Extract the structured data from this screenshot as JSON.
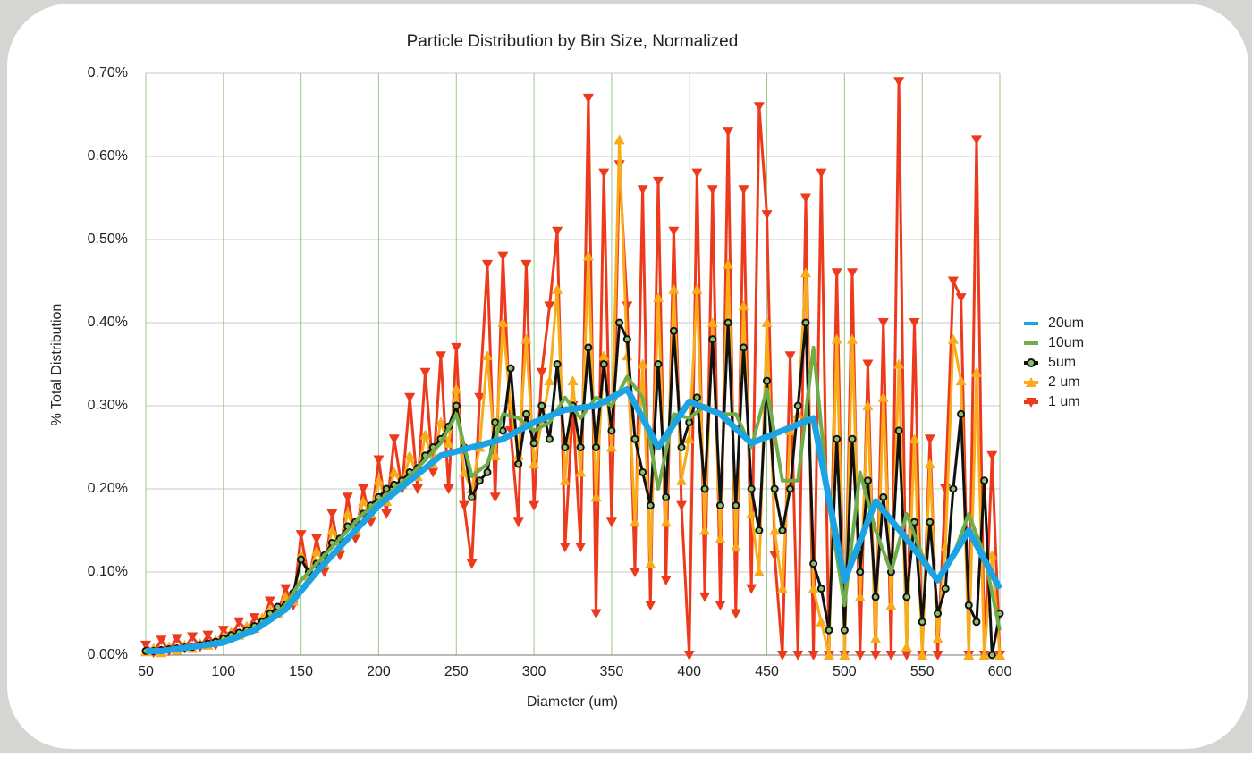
{
  "chart_data": {
    "type": "line",
    "title": "Particle Distribution by Bin Size, Normalized",
    "x_label": "Diameter (um)",
    "y_label": "% Total Distribution",
    "xlim": [
      50,
      600
    ],
    "xticks": [
      50,
      100,
      150,
      200,
      250,
      300,
      350,
      400,
      450,
      500,
      550,
      600
    ],
    "ylim": [
      0,
      0.7
    ],
    "yticks": [
      {
        "value": 0,
        "label": "0.00%"
      },
      {
        "value": 0.1,
        "label": "0.10%"
      },
      {
        "value": 0.2,
        "label": "0.20%"
      },
      {
        "value": 0.3,
        "label": "0.30%"
      },
      {
        "value": 0.4,
        "label": "0.40%"
      },
      {
        "value": 0.5,
        "label": "0.50%"
      },
      {
        "value": 0.6,
        "label": "0.60%"
      },
      {
        "value": 0.7,
        "label": "0.70%"
      }
    ],
    "grid": true,
    "legend": "right",
    "series": [
      {
        "name": "1 um",
        "color": "#ee3a1c",
        "marker": "triangle-down",
        "x": [
          50,
          55,
          60,
          65,
          70,
          75,
          80,
          85,
          90,
          95,
          100,
          105,
          110,
          115,
          120,
          125,
          130,
          135,
          140,
          145,
          150,
          155,
          160,
          165,
          170,
          175,
          180,
          185,
          190,
          195,
          200,
          205,
          210,
          215,
          220,
          225,
          230,
          235,
          240,
          245,
          250,
          255,
          260,
          265,
          270,
          275,
          280,
          285,
          290,
          295,
          300,
          305,
          310,
          315,
          320,
          325,
          330,
          335,
          340,
          345,
          350,
          355,
          360,
          365,
          370,
          375,
          380,
          385,
          390,
          395,
          400,
          405,
          410,
          415,
          420,
          425,
          430,
          435,
          440,
          445,
          450,
          455,
          460,
          465,
          470,
          475,
          480,
          485,
          490,
          495,
          500,
          505,
          510,
          515,
          520,
          525,
          530,
          535,
          540,
          545,
          550,
          555,
          560,
          565,
          570,
          575,
          580,
          585,
          590,
          595,
          600
        ],
        "values": [
          0.012,
          0.003,
          0.018,
          0.005,
          0.02,
          0.008,
          0.022,
          0.01,
          0.024,
          0.012,
          0.03,
          0.022,
          0.04,
          0.03,
          0.045,
          0.04,
          0.065,
          0.05,
          0.08,
          0.06,
          0.145,
          0.09,
          0.14,
          0.1,
          0.17,
          0.12,
          0.19,
          0.14,
          0.2,
          0.16,
          0.235,
          0.17,
          0.26,
          0.2,
          0.31,
          0.2,
          0.34,
          0.22,
          0.36,
          0.2,
          0.37,
          0.18,
          0.11,
          0.31,
          0.47,
          0.19,
          0.48,
          0.27,
          0.16,
          0.47,
          0.18,
          0.34,
          0.42,
          0.51,
          0.13,
          0.3,
          0.13,
          0.67,
          0.05,
          0.58,
          0.16,
          0.59,
          0.42,
          0.1,
          0.56,
          0.06,
          0.57,
          0.09,
          0.51,
          0.18,
          0,
          0.58,
          0.07,
          0.56,
          0.06,
          0.63,
          0.05,
          0.56,
          0.08,
          0.66,
          0.53,
          0.12,
          0,
          0.36,
          0,
          0.55,
          0,
          0.58,
          0,
          0.46,
          0,
          0.46,
          0,
          0.35,
          0,
          0.4,
          0,
          0.69,
          0,
          0.4,
          0,
          0.26,
          0,
          0.2,
          0.45,
          0.43,
          0,
          0.62,
          0,
          0.24,
          0
        ]
      },
      {
        "name": "2 um",
        "color": "#f8ac1c",
        "marker": "triangle-up",
        "x": [
          50,
          55,
          60,
          65,
          70,
          75,
          80,
          85,
          90,
          95,
          100,
          105,
          110,
          115,
          120,
          125,
          130,
          135,
          140,
          145,
          150,
          155,
          160,
          165,
          170,
          175,
          180,
          185,
          190,
          195,
          200,
          205,
          210,
          215,
          220,
          225,
          230,
          235,
          240,
          245,
          250,
          255,
          260,
          265,
          270,
          275,
          280,
          285,
          290,
          295,
          300,
          305,
          310,
          315,
          320,
          325,
          330,
          335,
          340,
          345,
          350,
          355,
          360,
          365,
          370,
          375,
          380,
          385,
          390,
          395,
          400,
          405,
          410,
          415,
          420,
          425,
          430,
          435,
          440,
          445,
          450,
          455,
          460,
          465,
          470,
          475,
          480,
          485,
          490,
          495,
          500,
          505,
          510,
          515,
          520,
          525,
          530,
          535,
          540,
          545,
          550,
          555,
          560,
          565,
          570,
          575,
          580,
          585,
          590,
          595,
          600
        ],
        "values": [
          0.004,
          0.008,
          0.003,
          0.01,
          0.006,
          0.012,
          0.008,
          0.014,
          0.012,
          0.018,
          0.022,
          0.028,
          0.024,
          0.035,
          0.032,
          0.045,
          0.055,
          0.05,
          0.07,
          0.065,
          0.12,
          0.095,
          0.125,
          0.11,
          0.15,
          0.13,
          0.17,
          0.15,
          0.185,
          0.17,
          0.21,
          0.185,
          0.22,
          0.205,
          0.24,
          0.215,
          0.265,
          0.23,
          0.28,
          0.255,
          0.32,
          0.22,
          0.2,
          0.25,
          0.36,
          0.24,
          0.4,
          0.3,
          0.24,
          0.38,
          0.23,
          0.28,
          0.33,
          0.44,
          0.21,
          0.33,
          0.22,
          0.48,
          0.19,
          0.36,
          0.25,
          0.62,
          0.36,
          0.16,
          0.35,
          0.11,
          0.43,
          0.16,
          0.44,
          0.21,
          0.26,
          0.44,
          0.15,
          0.4,
          0.14,
          0.47,
          0.13,
          0.42,
          0.17,
          0.1,
          0.4,
          0.15,
          0.08,
          0.27,
          0.29,
          0.46,
          0.08,
          0.04,
          0,
          0.38,
          0,
          0.38,
          0.07,
          0.3,
          0.02,
          0.31,
          0.06,
          0.35,
          0.01,
          0.26,
          0,
          0.23,
          0.02,
          0.13,
          0.38,
          0.33,
          0,
          0.34,
          0,
          0.12,
          0
        ]
      },
      {
        "name": "5um",
        "color": "#111111",
        "marker": "circle",
        "x": [
          50,
          55,
          60,
          65,
          70,
          75,
          80,
          85,
          90,
          95,
          100,
          105,
          110,
          115,
          120,
          125,
          130,
          135,
          140,
          145,
          150,
          155,
          160,
          165,
          170,
          175,
          180,
          185,
          190,
          195,
          200,
          205,
          210,
          215,
          220,
          225,
          230,
          235,
          240,
          245,
          250,
          255,
          260,
          265,
          270,
          275,
          280,
          285,
          290,
          295,
          300,
          305,
          310,
          315,
          320,
          325,
          330,
          335,
          340,
          345,
          350,
          355,
          360,
          365,
          370,
          375,
          380,
          385,
          390,
          395,
          400,
          405,
          410,
          415,
          420,
          425,
          430,
          435,
          440,
          445,
          450,
          455,
          460,
          465,
          470,
          475,
          480,
          485,
          490,
          495,
          500,
          505,
          510,
          515,
          520,
          525,
          530,
          535,
          540,
          545,
          550,
          555,
          560,
          565,
          570,
          575,
          580,
          585,
          590,
          595,
          600
        ],
        "values": [
          0.005,
          0.005,
          0.006,
          0.007,
          0.008,
          0.009,
          0.01,
          0.012,
          0.014,
          0.016,
          0.02,
          0.024,
          0.027,
          0.03,
          0.035,
          0.04,
          0.05,
          0.058,
          0.06,
          0.075,
          0.115,
          0.1,
          0.11,
          0.12,
          0.135,
          0.14,
          0.155,
          0.16,
          0.17,
          0.18,
          0.19,
          0.2,
          0.205,
          0.21,
          0.22,
          0.225,
          0.24,
          0.25,
          0.26,
          0.275,
          0.3,
          0.25,
          0.19,
          0.21,
          0.22,
          0.28,
          0.27,
          0.345,
          0.23,
          0.29,
          0.255,
          0.3,
          0.26,
          0.35,
          0.25,
          0.3,
          0.25,
          0.37,
          0.25,
          0.35,
          0.27,
          0.4,
          0.38,
          0.26,
          0.22,
          0.18,
          0.35,
          0.19,
          0.39,
          0.25,
          0.28,
          0.31,
          0.2,
          0.38,
          0.18,
          0.4,
          0.18,
          0.37,
          0.2,
          0.15,
          0.33,
          0.2,
          0.15,
          0.2,
          0.3,
          0.4,
          0.11,
          0.08,
          0.03,
          0.26,
          0.03,
          0.26,
          0.1,
          0.21,
          0.07,
          0.19,
          0.1,
          0.27,
          0.07,
          0.16,
          0.04,
          0.16,
          0.05,
          0.08,
          0.2,
          0.29,
          0.06,
          0.04,
          0.21,
          0,
          0.05
        ]
      },
      {
        "name": "10um",
        "color": "#6fad4a",
        "marker": "none",
        "x": [
          50,
          60,
          70,
          80,
          90,
          100,
          110,
          120,
          130,
          140,
          150,
          160,
          170,
          180,
          190,
          200,
          210,
          220,
          230,
          240,
          250,
          260,
          270,
          280,
          290,
          300,
          310,
          320,
          330,
          340,
          350,
          360,
          370,
          380,
          390,
          400,
          410,
          420,
          430,
          440,
          450,
          460,
          470,
          480,
          490,
          500,
          510,
          520,
          530,
          540,
          550,
          560,
          570,
          580,
          590,
          600
        ],
        "values": [
          0.005,
          0.005,
          0.008,
          0.01,
          0.012,
          0.018,
          0.025,
          0.032,
          0.045,
          0.06,
          0.09,
          0.11,
          0.13,
          0.15,
          0.17,
          0.185,
          0.2,
          0.215,
          0.235,
          0.255,
          0.29,
          0.215,
          0.23,
          0.29,
          0.285,
          0.27,
          0.28,
          0.31,
          0.285,
          0.31,
          0.3,
          0.335,
          0.31,
          0.2,
          0.29,
          0.285,
          0.3,
          0.29,
          0.29,
          0.25,
          0.32,
          0.21,
          0.21,
          0.37,
          0.18,
          0.06,
          0.22,
          0.15,
          0.1,
          0.17,
          0.12,
          0.09,
          0.12,
          0.17,
          0.12,
          0.03
        ]
      },
      {
        "name": "20um",
        "color": "#1ca3e4",
        "marker": "none",
        "x": [
          50,
          60,
          80,
          100,
          120,
          140,
          160,
          180,
          200,
          220,
          240,
          260,
          280,
          300,
          320,
          340,
          360,
          380,
          400,
          420,
          440,
          460,
          480,
          500,
          520,
          540,
          560,
          580,
          600
        ],
        "values": [
          0.005,
          0.005,
          0.01,
          0.015,
          0.03,
          0.055,
          0.1,
          0.14,
          0.18,
          0.21,
          0.24,
          0.25,
          0.26,
          0.28,
          0.295,
          0.3,
          0.32,
          0.25,
          0.305,
          0.29,
          0.255,
          0.27,
          0.285,
          0.09,
          0.185,
          0.14,
          0.09,
          0.15,
          0.08
        ]
      }
    ]
  }
}
